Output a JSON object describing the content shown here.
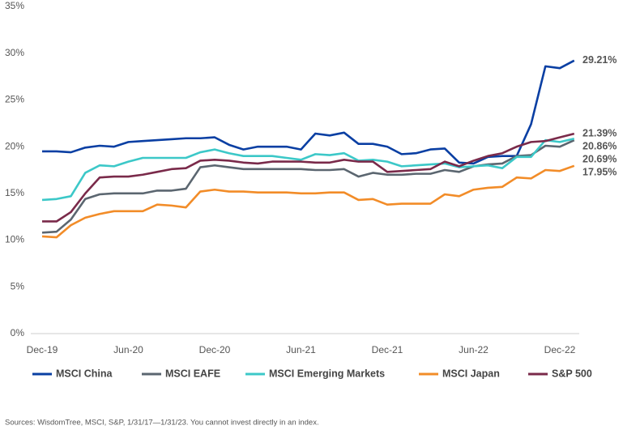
{
  "chart_data": {
    "type": "line",
    "categories": [
      "Dec-19",
      null,
      null,
      null,
      null,
      null,
      "Jun-20",
      null,
      null,
      null,
      null,
      null,
      "Dec-20",
      null,
      null,
      null,
      null,
      null,
      "Jun-21",
      null,
      null,
      null,
      null,
      null,
      "Dec-21",
      null,
      null,
      null,
      null,
      null,
      "Jun-22",
      null,
      null,
      null,
      null,
      null,
      "Dec-22",
      null
    ],
    "ylim": [
      0,
      35
    ],
    "yticks": [
      {
        "value": 0,
        "label": "0%"
      },
      {
        "value": 5,
        "label": "5%"
      },
      {
        "value": 10,
        "label": "10%"
      },
      {
        "value": 15,
        "label": "15%"
      },
      {
        "value": 20,
        "label": "20%"
      },
      {
        "value": 25,
        "label": "25%"
      },
      {
        "value": 30,
        "label": "30%"
      },
      {
        "value": 35,
        "label": "35%"
      }
    ],
    "grid": false,
    "legend": "bottom",
    "series": [
      {
        "name": "MSCI China",
        "color": "#0a3fa3",
        "values": [
          19.5,
          19.5,
          19.4,
          19.9,
          20.1,
          20.0,
          20.5,
          20.6,
          20.7,
          20.8,
          20.9,
          20.9,
          21.0,
          20.2,
          19.7,
          20.0,
          20.0,
          20.0,
          19.7,
          21.4,
          21.2,
          21.5,
          20.3,
          20.3,
          20.0,
          19.2,
          19.3,
          19.7,
          19.8,
          18.3,
          18.2,
          18.9,
          19.0,
          19.0,
          22.4,
          28.6,
          28.4,
          29.21
        ],
        "value_labels": [
          null,
          null,
          null,
          null,
          null,
          null,
          null,
          null,
          null,
          null,
          null,
          null,
          null,
          null,
          null,
          null,
          null,
          null,
          null,
          null,
          null,
          null,
          null,
          null,
          null,
          null,
          null,
          null,
          null,
          null,
          null,
          null,
          null,
          null,
          null,
          null,
          null,
          "29.21%"
        ]
      },
      {
        "name": "MSCI EAFE",
        "color": "#5b6670",
        "values": [
          10.8,
          10.9,
          12.2,
          14.4,
          14.9,
          15.0,
          15.0,
          15.0,
          15.3,
          15.3,
          15.5,
          17.8,
          18.0,
          17.8,
          17.6,
          17.6,
          17.6,
          17.6,
          17.6,
          17.5,
          17.5,
          17.6,
          16.8,
          17.2,
          17.0,
          17.0,
          17.1,
          17.1,
          17.5,
          17.3,
          17.9,
          18.1,
          18.2,
          19.0,
          19.1,
          20.1,
          20.0,
          20.69
        ],
        "value_labels": [
          null,
          null,
          null,
          null,
          null,
          null,
          null,
          null,
          null,
          null,
          null,
          null,
          null,
          null,
          null,
          null,
          null,
          null,
          null,
          null,
          null,
          null,
          null,
          null,
          null,
          null,
          null,
          null,
          null,
          null,
          null,
          null,
          null,
          null,
          null,
          null,
          null,
          "20.69%"
        ]
      },
      {
        "name": "MSCI Emerging Markets",
        "color": "#3cc8c8",
        "values": [
          14.3,
          14.4,
          14.7,
          17.2,
          18.0,
          17.9,
          18.4,
          18.8,
          18.8,
          18.8,
          18.8,
          19.4,
          19.7,
          19.3,
          19.0,
          19.0,
          19.0,
          18.8,
          18.6,
          19.2,
          19.1,
          19.3,
          18.5,
          18.6,
          18.4,
          17.9,
          18.0,
          18.1,
          18.2,
          17.8,
          17.9,
          18.0,
          17.7,
          18.9,
          18.9,
          20.7,
          20.5,
          20.86
        ],
        "value_labels": [
          null,
          null,
          null,
          null,
          null,
          null,
          null,
          null,
          null,
          null,
          null,
          null,
          null,
          null,
          null,
          null,
          null,
          null,
          null,
          null,
          null,
          null,
          null,
          null,
          null,
          null,
          null,
          null,
          null,
          null,
          null,
          null,
          null,
          null,
          null,
          null,
          null,
          "20.86%"
        ]
      },
      {
        "name": "MSCI Japan",
        "color": "#f28c28",
        "values": [
          10.4,
          10.3,
          11.6,
          12.4,
          12.8,
          13.1,
          13.1,
          13.1,
          13.8,
          13.7,
          13.5,
          15.2,
          15.4,
          15.2,
          15.2,
          15.1,
          15.1,
          15.1,
          15.0,
          15.0,
          15.1,
          15.1,
          14.3,
          14.4,
          13.8,
          13.9,
          13.9,
          13.9,
          14.9,
          14.7,
          15.4,
          15.6,
          15.7,
          16.7,
          16.6,
          17.5,
          17.4,
          17.95
        ],
        "value_labels": [
          null,
          null,
          null,
          null,
          null,
          null,
          null,
          null,
          null,
          null,
          null,
          null,
          null,
          null,
          null,
          null,
          null,
          null,
          null,
          null,
          null,
          null,
          null,
          null,
          null,
          null,
          null,
          null,
          null,
          null,
          null,
          null,
          null,
          null,
          null,
          null,
          null,
          "17.95%"
        ]
      },
      {
        "name": "S&P 500",
        "color": "#7a2a4a",
        "values": [
          12.0,
          12.0,
          13.0,
          15.0,
          16.7,
          16.8,
          16.8,
          17.0,
          17.3,
          17.6,
          17.7,
          18.5,
          18.6,
          18.5,
          18.3,
          18.2,
          18.4,
          18.4,
          18.4,
          18.3,
          18.3,
          18.6,
          18.4,
          18.4,
          17.3,
          17.4,
          17.5,
          17.6,
          18.4,
          17.9,
          18.5,
          19.0,
          19.3,
          20.0,
          20.5,
          20.6,
          21.0,
          21.39
        ],
        "value_labels": [
          null,
          null,
          null,
          null,
          null,
          null,
          null,
          null,
          null,
          null,
          null,
          null,
          null,
          null,
          null,
          null,
          null,
          null,
          null,
          null,
          null,
          null,
          null,
          null,
          null,
          null,
          null,
          null,
          null,
          null,
          null,
          null,
          null,
          null,
          null,
          null,
          null,
          "21.39%"
        ]
      }
    ],
    "source": "Sources: WisdomTree, MSCI, S&P, 1/31/17—1/31/23. You cannot invest directly in an index."
  }
}
